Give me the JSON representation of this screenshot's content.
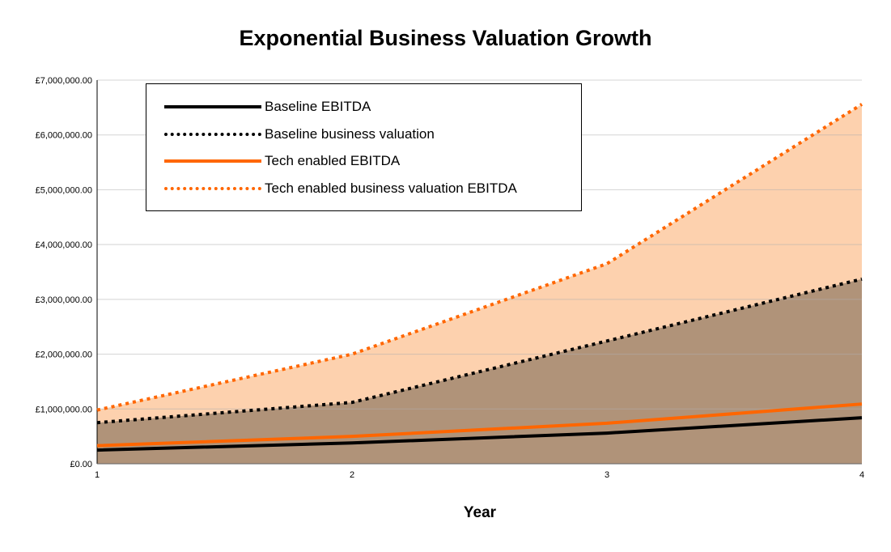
{
  "chart_data": {
    "type": "area",
    "title": "Exponential Business Valuation Growth",
    "xlabel": "Year",
    "ylabel": "",
    "x": [
      1,
      2,
      3,
      4
    ],
    "ylim": [
      0,
      7000000
    ],
    "yticks": [
      "£0.00",
      "£1,000,000.00",
      "£2,000,000.00",
      "£3,000,000.00",
      "£4,000,000.00",
      "£5,000,000.00",
      "£6,000,000.00",
      "£7,000,000.00"
    ],
    "xticks": [
      "1",
      "2",
      "3",
      "4"
    ],
    "grid": true,
    "legend_position": "top-left",
    "series": [
      {
        "name": "Baseline EBITDA",
        "values": [
          250000,
          380000,
          560000,
          840000
        ],
        "color": "#000000",
        "style": "solid"
      },
      {
        "name": "Baseline business valuation",
        "values": [
          750000,
          1120000,
          2240000,
          3370000
        ],
        "color": "#000000",
        "style": "dotted",
        "fill": "#B09379"
      },
      {
        "name": "Tech enabled EBITDA",
        "values": [
          330000,
          500000,
          740000,
          1090000
        ],
        "color": "#FF6600",
        "style": "solid"
      },
      {
        "name": "Tech enabled business valuation EBITDA",
        "values": [
          980000,
          2000000,
          3650000,
          6560000
        ],
        "color": "#FF6600",
        "style": "dotted",
        "fill": "#FDD1AE"
      }
    ]
  }
}
